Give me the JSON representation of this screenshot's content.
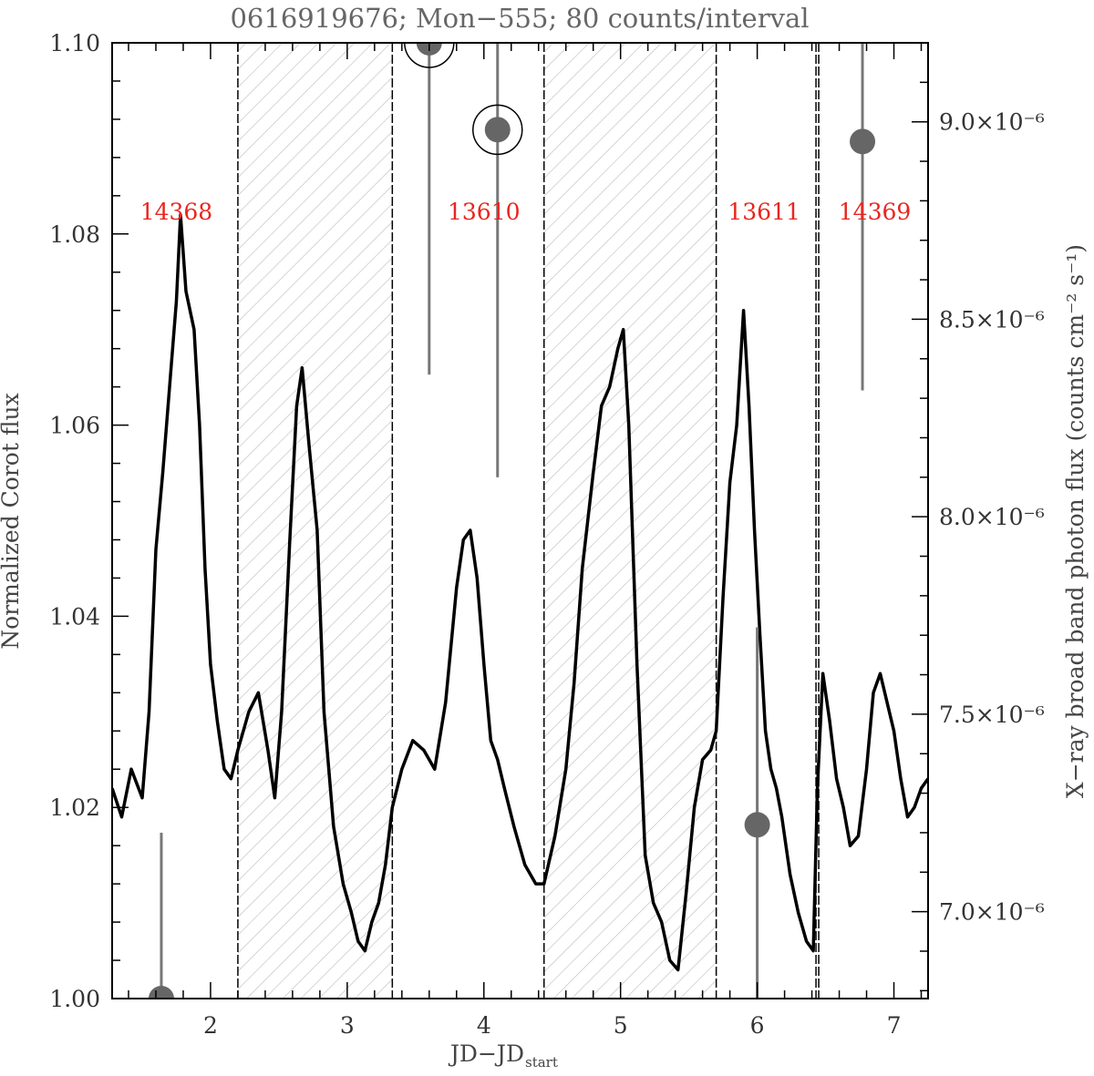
{
  "chart_data": {
    "type": "line",
    "title": "0616919676; Mon−555; 80 counts/interval",
    "xlabel": "JD−JD",
    "xlabel_subscript": "start",
    "ylabel": "Normalized Corot flux",
    "y2label": "X−ray broad band photon flux (counts cm⁻² s⁻¹)",
    "xlim": [
      1.28,
      7.25
    ],
    "ylim": [
      1.0,
      1.1
    ],
    "y2lim": [
      6.78e-06,
      9.2e-06
    ],
    "x_ticks": [
      "2",
      "3",
      "4",
      "5",
      "6",
      "7"
    ],
    "y_ticks": [
      "1.00",
      "1.02",
      "1.04",
      "1.06",
      "1.08",
      "1.10"
    ],
    "y2_ticks": [
      "7.0×10⁻⁶",
      "7.5×10⁻⁶",
      "8.0×10⁻⁶",
      "8.5×10⁻⁶",
      "9.0×10⁻⁶"
    ],
    "observation_labels": [
      {
        "text": "14368",
        "x": 1.75
      },
      {
        "text": "13610",
        "x": 4.0
      },
      {
        "text": "13611",
        "x": 6.05
      },
      {
        "text": "14369",
        "x": 6.86
      }
    ],
    "shaded_intervals": [
      [
        2.2,
        3.33
      ],
      [
        4.44,
        5.7
      ]
    ],
    "vertical_lines": [
      2.2,
      3.33,
      4.44,
      5.7,
      6.43,
      6.45
    ],
    "series": [
      {
        "style": "corot-light-curve",
        "x": [
          1.28,
          1.35,
          1.42,
          1.5,
          1.55,
          1.6,
          1.65,
          1.7,
          1.75,
          1.78,
          1.82,
          1.88,
          1.92,
          1.96,
          2.0,
          2.05,
          2.1,
          2.15,
          2.2,
          2.28,
          2.35,
          2.42,
          2.47,
          2.52,
          2.58,
          2.63,
          2.67,
          2.72,
          2.78,
          2.83,
          2.9,
          2.97,
          3.03,
          3.08,
          3.13,
          3.18,
          3.23,
          3.28,
          3.33,
          3.4,
          3.48,
          3.56,
          3.64,
          3.72,
          3.8,
          3.85,
          3.9,
          3.95,
          4.0,
          4.05,
          4.1,
          4.15,
          4.22,
          4.3,
          4.38,
          4.44,
          4.52,
          4.6,
          4.66,
          4.72,
          4.8,
          4.86,
          4.92,
          4.98,
          5.02,
          5.06,
          5.12,
          5.18,
          5.24,
          5.3,
          5.36,
          5.42,
          5.48,
          5.54,
          5.6,
          5.66,
          5.7,
          5.75,
          5.8,
          5.85,
          5.9,
          5.94,
          5.98,
          6.02,
          6.06,
          6.1,
          6.14,
          6.18,
          6.24,
          6.3,
          6.36,
          6.41,
          6.44,
          6.48,
          6.53,
          6.58,
          6.63,
          6.68,
          6.74,
          6.8,
          6.85,
          6.9,
          6.95,
          7.0,
          7.05,
          7.1,
          7.15,
          7.2,
          7.25
        ],
        "y": [
          1.022,
          1.019,
          1.024,
          1.021,
          1.03,
          1.047,
          1.055,
          1.064,
          1.073,
          1.082,
          1.074,
          1.07,
          1.06,
          1.045,
          1.035,
          1.029,
          1.024,
          1.023,
          1.026,
          1.03,
          1.032,
          1.026,
          1.021,
          1.03,
          1.048,
          1.062,
          1.066,
          1.058,
          1.049,
          1.03,
          1.018,
          1.012,
          1.009,
          1.006,
          1.005,
          1.008,
          1.01,
          1.014,
          1.02,
          1.024,
          1.027,
          1.026,
          1.024,
          1.031,
          1.043,
          1.048,
          1.049,
          1.044,
          1.035,
          1.027,
          1.025,
          1.022,
          1.018,
          1.014,
          1.012,
          1.012,
          1.017,
          1.024,
          1.033,
          1.045,
          1.055,
          1.062,
          1.064,
          1.068,
          1.07,
          1.06,
          1.035,
          1.015,
          1.01,
          1.008,
          1.004,
          1.003,
          1.011,
          1.02,
          1.025,
          1.026,
          1.028,
          1.042,
          1.054,
          1.06,
          1.072,
          1.062,
          1.049,
          1.038,
          1.028,
          1.024,
          1.022,
          1.019,
          1.013,
          1.009,
          1.006,
          1.005,
          1.022,
          1.034,
          1.029,
          1.023,
          1.02,
          1.016,
          1.017,
          1.024,
          1.032,
          1.034,
          1.031,
          1.028,
          1.023,
          1.019,
          1.02,
          1.022,
          1.023
        ]
      }
    ],
    "xray_points": [
      {
        "x": 1.64,
        "y2": 6.78e-06,
        "err_low": 6.78e-06,
        "err_high": 7.2e-06,
        "circled": false
      },
      {
        "x": 3.6,
        "y2": 9.2e-06,
        "err_low": 8.36e-06,
        "err_high": 9.2e-06,
        "circled": true
      },
      {
        "x": 4.1,
        "y2": 8.98e-06,
        "err_low": 8.1e-06,
        "err_high": 9.2e-06,
        "circled": true
      },
      {
        "x": 6.0,
        "y2": 7.22e-06,
        "err_low": 6.78e-06,
        "err_high": 7.72e-06,
        "circled": false
      },
      {
        "x": 6.77,
        "y2": 8.95e-06,
        "err_low": 8.32e-06,
        "err_high": 9.2e-06,
        "circled": false
      }
    ],
    "colors": {
      "curve": "#000000",
      "xray_marker": "#666666",
      "hatch": "#bbbbbb",
      "labels": "#e8261f"
    },
    "grid": false,
    "legend": "none"
  }
}
